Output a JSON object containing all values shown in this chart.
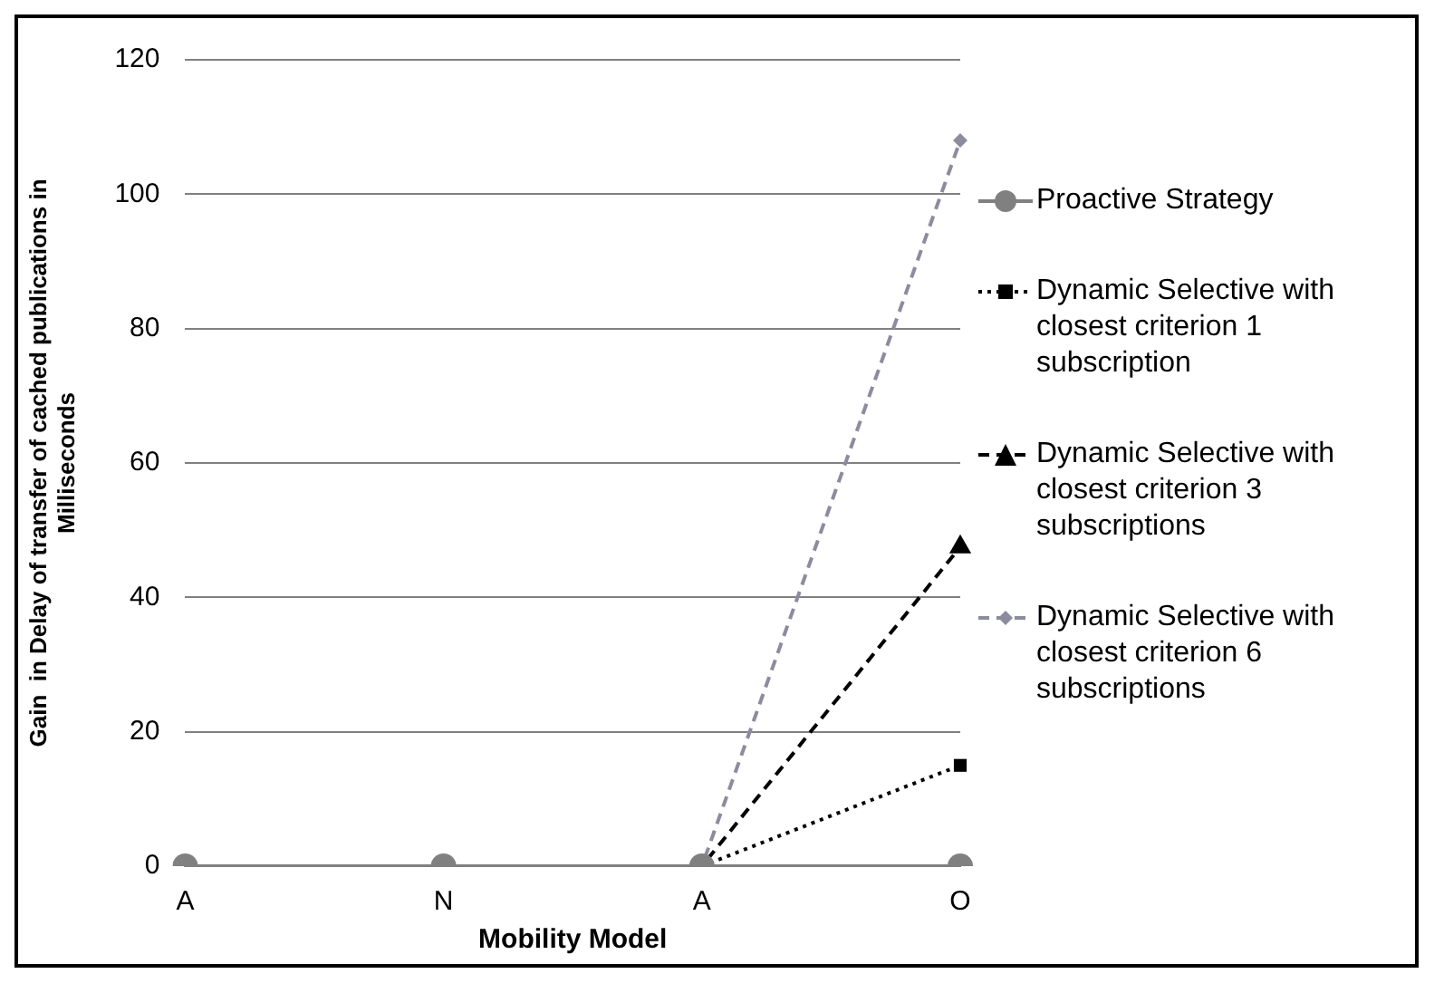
{
  "chart_data": {
    "type": "line",
    "xlabel": "Mobility Model",
    "ylabel": "Gain  in Delay of transfer of cached publications in Milliseconds",
    "categories": [
      "A",
      "N",
      "A",
      "O"
    ],
    "series": [
      {
        "name": "Proactive Strategy",
        "color": "#808080",
        "marker": "circle",
        "line_style": "solid",
        "values": [
          0,
          0,
          0,
          0
        ]
      },
      {
        "name": "Dynamic Selective with closest criterion 1 subscription",
        "color": "#000000",
        "marker": "square",
        "line_style": "dotted",
        "values": [
          0,
          0,
          0,
          15
        ]
      },
      {
        "name": "Dynamic Selective with closest criterion 3 subscriptions",
        "color": "#000000",
        "marker": "triangle",
        "line_style": "dashed",
        "values": [
          0,
          0,
          0,
          47.5
        ]
      },
      {
        "name": "Dynamic Selective with closest criterion 6 subscriptions",
        "color": "#8c8c9e",
        "marker": "diamond",
        "line_style": "dashed",
        "values": [
          0,
          0,
          0,
          108
        ]
      }
    ],
    "ylim": [
      0,
      120
    ],
    "yticks": [
      0,
      20,
      40,
      60,
      80,
      100,
      120
    ],
    "grid": "y",
    "legend": "right"
  }
}
